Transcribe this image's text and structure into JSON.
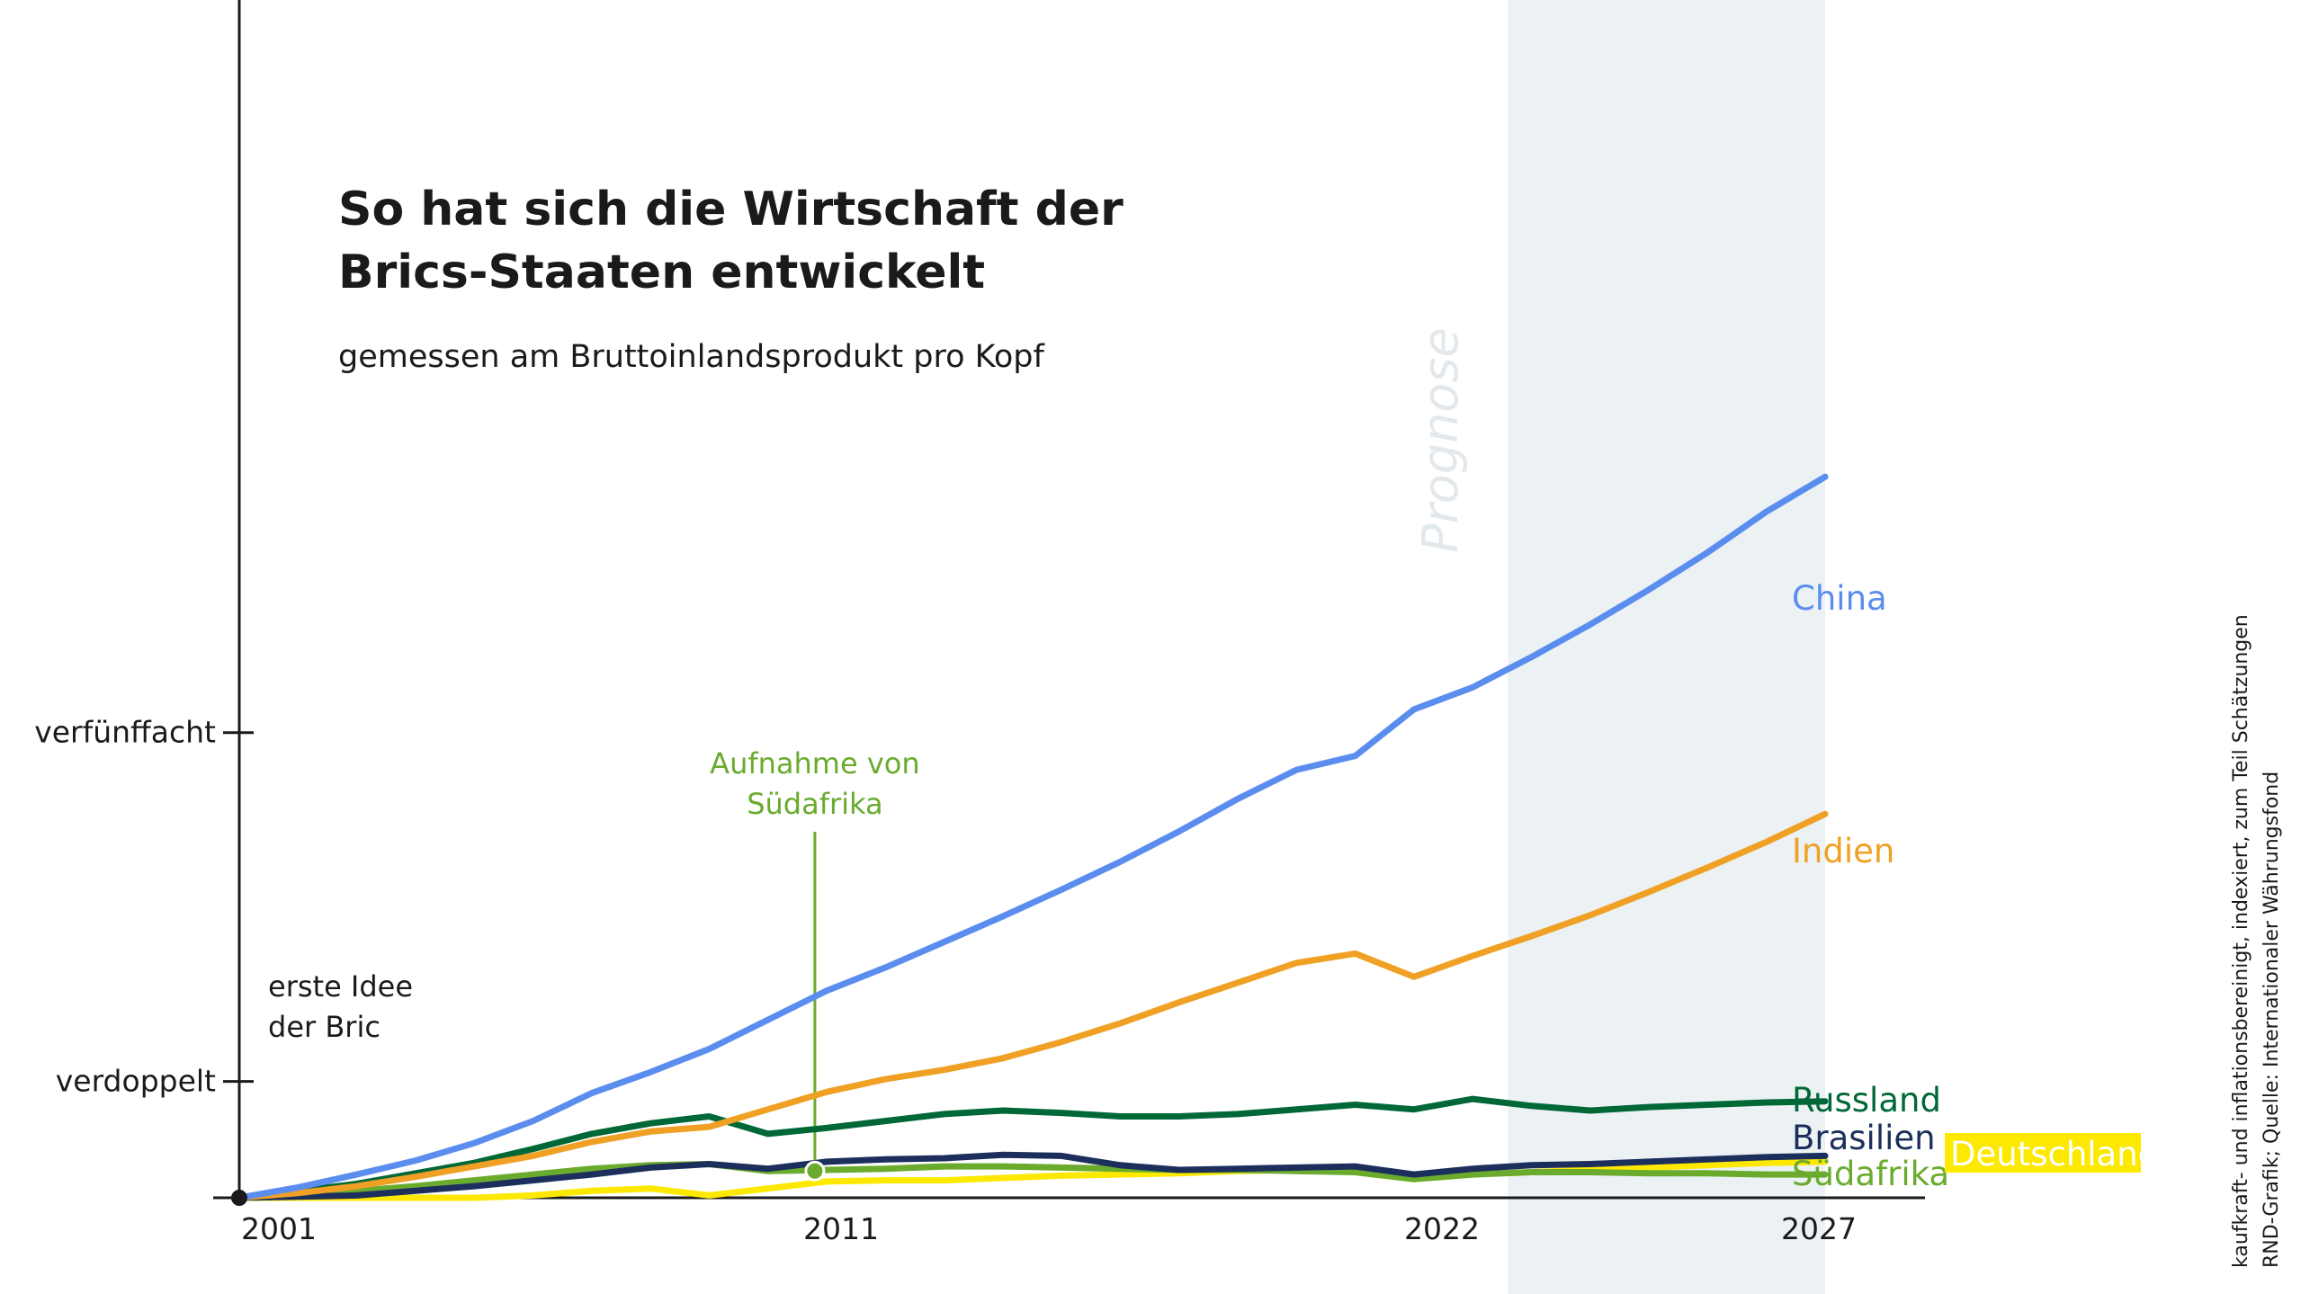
{
  "chart_data": {
    "type": "line",
    "title_lines": [
      "So hat sich die Wirtschaft der",
      "Brics-Staaten entwickelt"
    ],
    "subtitle": "gemessen am Bruttoinlandsprodukt pro Kopf",
    "x_ticks": [
      "2001",
      "2011",
      "2022",
      "2027"
    ],
    "y_ticks": [
      {
        "value": 2,
        "label": "verdoppelt"
      },
      {
        "value": 5,
        "label": "verfünffacht"
      }
    ],
    "xlim": [
      2001,
      2029.7
    ],
    "ylim": [
      1,
      11.3
    ],
    "forecast_range": [
      2022.6,
      2028
    ],
    "forecast_label": "Prognose",
    "annotations": [
      {
        "x": 2001,
        "lines": [
          "erste Idee",
          "der Bric"
        ],
        "color": "#1a1a1a"
      },
      {
        "x": 2010.8,
        "lines": [
          "Aufnahme von",
          "Südafrika"
        ],
        "color": "#6aab2e"
      }
    ],
    "x": [
      2001,
      2002,
      2003,
      2004,
      2005,
      2006,
      2007,
      2008,
      2009,
      2010,
      2011,
      2012,
      2013,
      2014,
      2015,
      2016,
      2017,
      2018,
      2019,
      2020,
      2021,
      2022,
      2023,
      2024,
      2025,
      2026,
      2027,
      2028
    ],
    "series": [
      {
        "name": "China",
        "color": "#5b8def",
        "values": [
          1.0,
          1.09,
          1.2,
          1.32,
          1.47,
          1.66,
          1.9,
          2.08,
          2.28,
          2.53,
          2.78,
          2.98,
          3.2,
          3.42,
          3.65,
          3.89,
          4.15,
          4.43,
          4.68,
          4.8,
          5.2,
          5.39,
          5.65,
          5.93,
          6.23,
          6.55,
          6.9,
          7.2
        ]
      },
      {
        "name": "Indien",
        "color": "#f0a024",
        "values": [
          1.0,
          1.04,
          1.1,
          1.18,
          1.27,
          1.36,
          1.48,
          1.57,
          1.61,
          1.76,
          1.91,
          2.02,
          2.1,
          2.2,
          2.34,
          2.5,
          2.68,
          2.85,
          3.02,
          3.1,
          2.9,
          3.08,
          3.25,
          3.43,
          3.63,
          3.84,
          4.06,
          4.3
        ]
      },
      {
        "name": "Russland",
        "color": "#006837",
        "values": [
          1.0,
          1.06,
          1.12,
          1.21,
          1.3,
          1.42,
          1.55,
          1.64,
          1.7,
          1.55,
          1.6,
          1.66,
          1.72,
          1.75,
          1.73,
          1.7,
          1.7,
          1.72,
          1.76,
          1.8,
          1.76,
          1.85,
          1.79,
          1.75,
          1.78,
          1.8,
          1.82,
          1.83
        ]
      },
      {
        "name": "Brasilien",
        "color": "#1c2f5c",
        "values": [
          1.0,
          1.01,
          1.02,
          1.06,
          1.1,
          1.15,
          1.2,
          1.26,
          1.29,
          1.25,
          1.31,
          1.33,
          1.34,
          1.37,
          1.36,
          1.28,
          1.24,
          1.25,
          1.26,
          1.27,
          1.2,
          1.25,
          1.28,
          1.29,
          1.31,
          1.33,
          1.35,
          1.36
        ]
      },
      {
        "name": "Südafrika",
        "color": "#6aab2e",
        "values": [
          1.0,
          1.03,
          1.06,
          1.1,
          1.15,
          1.2,
          1.25,
          1.28,
          1.29,
          1.23,
          1.24,
          1.25,
          1.27,
          1.27,
          1.26,
          1.25,
          1.24,
          1.24,
          1.23,
          1.22,
          1.16,
          1.2,
          1.22,
          1.22,
          1.21,
          1.21,
          1.2,
          1.2
        ]
      },
      {
        "name": "Deutschland",
        "color": "#fde800",
        "values": [
          1.0,
          1.0,
          1.0,
          1.0,
          1.0,
          1.02,
          1.06,
          1.08,
          1.02,
          1.08,
          1.14,
          1.15,
          1.15,
          1.17,
          1.19,
          1.2,
          1.21,
          1.23,
          1.24,
          1.22,
          1.16,
          1.2,
          1.22,
          1.24,
          1.26,
          1.28,
          1.3,
          1.31
        ]
      }
    ],
    "end_labels": [
      {
        "text": "China",
        "color": "#5b8def",
        "box": false
      },
      {
        "text": "Indien",
        "color": "#f0a024",
        "box": false
      },
      {
        "text": "Russland",
        "color": "#006837",
        "box": false
      },
      {
        "text": "Brasilien",
        "color": "#1c2f5c",
        "box": false
      },
      {
        "text": "Südafrika",
        "color": "#6aab2e",
        "box": false
      },
      {
        "text": "Deutschland",
        "color": "#ffffff",
        "box": true,
        "box_color": "#fde800"
      }
    ],
    "source_lines": [
      "kaufkraft- und inflationsbereinigt, indexiert, zum Teil Schätzungen",
      "RND-Grafik; Quelle: Internationaler Währungsfond"
    ]
  }
}
